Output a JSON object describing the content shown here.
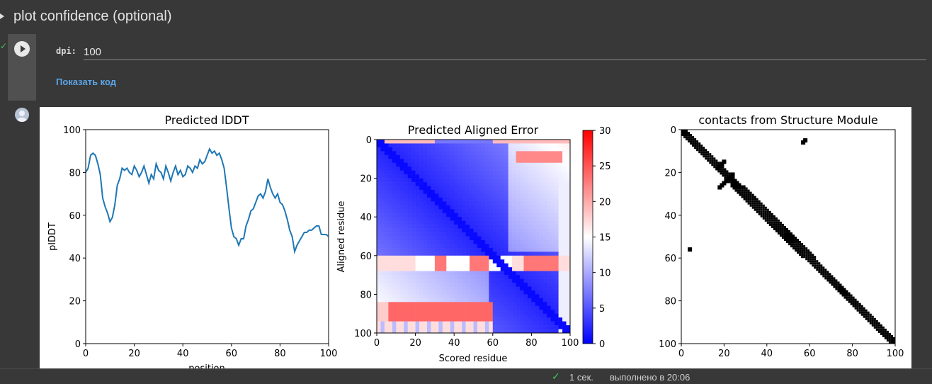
{
  "cell": {
    "title": "plot confidence (optional)",
    "run_status": "✓",
    "param_label": "dpi:",
    "param_value": "100",
    "show_code_label": "Показать код"
  },
  "status_bar": {
    "check": "✓",
    "duration": "1 сек.",
    "executed": "выполнено в 20:06"
  },
  "colors": {
    "line": "#1f77b4",
    "link": "#5aa4e8",
    "success": "#3ec45b"
  },
  "chart_data": [
    {
      "type": "line",
      "title": "Predicted lDDT",
      "xlabel": "position",
      "ylabel": "plDDT",
      "xlim": [
        0,
        100
      ],
      "ylim": [
        0,
        100
      ],
      "xticks": [
        0,
        20,
        40,
        60,
        80,
        100
      ],
      "yticks": [
        0,
        20,
        40,
        60,
        80,
        100
      ],
      "x": [
        0,
        1,
        2,
        3,
        4,
        5,
        6,
        7,
        8,
        9,
        10,
        11,
        12,
        13,
        14,
        15,
        16,
        17,
        18,
        19,
        20,
        21,
        22,
        23,
        24,
        25,
        26,
        27,
        28,
        29,
        30,
        31,
        32,
        33,
        34,
        35,
        36,
        37,
        38,
        39,
        40,
        41,
        42,
        43,
        44,
        45,
        46,
        47,
        48,
        49,
        50,
        51,
        52,
        53,
        54,
        55,
        56,
        57,
        58,
        59,
        60,
        61,
        62,
        63,
        64,
        65,
        66,
        67,
        68,
        69,
        70,
        71,
        72,
        73,
        74,
        75,
        76,
        77,
        78,
        79,
        80,
        81,
        82,
        83,
        84,
        85,
        86,
        87,
        88,
        89,
        90,
        91,
        92,
        93,
        94,
        95,
        96,
        97,
        98,
        99,
        100
      ],
      "y": [
        80,
        82,
        88,
        89,
        88,
        84,
        79,
        68,
        64,
        61,
        57,
        59,
        65,
        74,
        77,
        82,
        81,
        82,
        80,
        79,
        83,
        81,
        78,
        80,
        83,
        79,
        75,
        79,
        77,
        84,
        81,
        80,
        77,
        83,
        80,
        76,
        80,
        83,
        79,
        81,
        78,
        79,
        83,
        82,
        80,
        83,
        82,
        86,
        84,
        85,
        88,
        91,
        89,
        90,
        88,
        89,
        86,
        82,
        73,
        63,
        54,
        50,
        49,
        46,
        49,
        49,
        55,
        58,
        62,
        63,
        66,
        69,
        70,
        68,
        71,
        77,
        73,
        70,
        68,
        70,
        66,
        65,
        62,
        58,
        53,
        50,
        43,
        46,
        48,
        50,
        52,
        52,
        53,
        53,
        54,
        55,
        55,
        51,
        51,
        51,
        50
      ],
      "grid": false
    },
    {
      "type": "heatmap",
      "title": "Predicted Aligned Error",
      "xlabel": "Scored residue",
      "ylabel": "Aligned residue",
      "xlim": [
        0,
        100
      ],
      "ylim": [
        100,
        0
      ],
      "xticks": [
        0,
        20,
        40,
        60,
        80,
        100
      ],
      "yticks": [
        0,
        20,
        40,
        60,
        80,
        100
      ],
      "colormap": "bwr",
      "vmin": 0,
      "vmax": 30,
      "colorbar_ticks": [
        0,
        5,
        10,
        15,
        20,
        25,
        30
      ]
    },
    {
      "type": "heatmap",
      "title": "contacts from Structure Module",
      "xlim": [
        0,
        100
      ],
      "ylim": [
        100,
        0
      ],
      "xticks": [
        0,
        20,
        40,
        60,
        80,
        100
      ],
      "yticks": [
        0,
        20,
        40,
        60,
        80,
        100
      ],
      "colormap": "Greys"
    }
  ]
}
